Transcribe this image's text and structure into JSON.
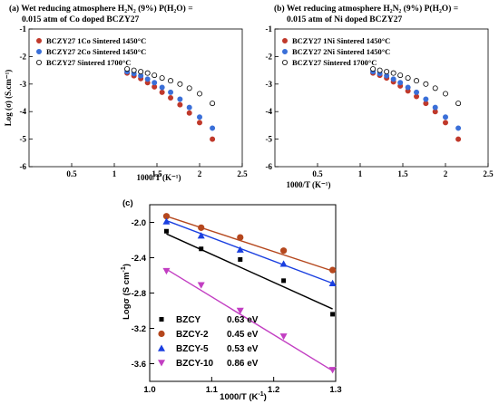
{
  "chart_data": [
    {
      "panel": "(a)",
      "type": "scatter",
      "title_line1": "(a) Wet reducing atmosphere H₂N₂ (9%) P(H₂O) =",
      "title_line2": "0.015 atm of Co doped BCZY27",
      "xlabel": "1000/T (K⁻¹)",
      "ylabel": "Log (σ) (S.cm⁻¹)",
      "xlim": [
        0,
        2.5
      ],
      "ylim": [
        -6,
        -1
      ],
      "xticks": [
        "0.5",
        "1",
        "1.5",
        "2",
        "2.5"
      ],
      "yticks": [
        "-1",
        "-2",
        "-3",
        "-4",
        "-5",
        "-6"
      ],
      "legend_position": "top-left",
      "series": [
        {
          "name": "BCZY27 1Co Sintered 1450°C",
          "color": "#c0392b",
          "marker": "filled-circle",
          "x": [
            1.15,
            1.23,
            1.31,
            1.39,
            1.47,
            1.56,
            1.66,
            1.77,
            1.88,
            2.0,
            2.15
          ],
          "y": [
            -2.6,
            -2.7,
            -2.8,
            -2.95,
            -3.1,
            -3.3,
            -3.5,
            -3.75,
            -4.05,
            -4.4,
            -5.0
          ]
        },
        {
          "name": "BCZY27 2Co Sintered 1450°C",
          "color": "#3a6fd8",
          "marker": "filled-circle",
          "x": [
            1.15,
            1.23,
            1.31,
            1.39,
            1.47,
            1.56,
            1.66,
            1.77,
            1.88,
            2.0,
            2.15
          ],
          "y": [
            -2.55,
            -2.62,
            -2.7,
            -2.82,
            -2.95,
            -3.12,
            -3.3,
            -3.55,
            -3.85,
            -4.2,
            -4.6
          ]
        },
        {
          "name": "BCZY27 Sintered 1700°C",
          "color": "#000000",
          "marker": "open-circle",
          "x": [
            1.15,
            1.23,
            1.31,
            1.39,
            1.47,
            1.56,
            1.66,
            1.77,
            1.88,
            2.0,
            2.15
          ],
          "y": [
            -2.45,
            -2.5,
            -2.55,
            -2.6,
            -2.68,
            -2.78,
            -2.88,
            -3.0,
            -3.15,
            -3.35,
            -3.7
          ]
        }
      ]
    },
    {
      "panel": "(b)",
      "type": "scatter",
      "title_line1": "(b) Wet reducing atmosphere H₂N₂ (9%) P(H₂O) =",
      "title_line2": "0.015 atm of Ni doped BCZY27",
      "xlabel": "1000/T (K⁻¹)",
      "ylabel": "",
      "xlim": [
        0,
        2.5
      ],
      "ylim": [
        -6,
        -1
      ],
      "xticks": [
        "0.5",
        "1",
        "1.5",
        "2",
        "2.5"
      ],
      "yticks": [
        "-1",
        "-2",
        "-3",
        "-4",
        "-5",
        "-6"
      ],
      "legend_position": "top-left",
      "series": [
        {
          "name": "BCZY27 1Ni Sintered 1450°C",
          "color": "#c0392b",
          "marker": "filled-circle",
          "x": [
            1.15,
            1.23,
            1.31,
            1.39,
            1.47,
            1.56,
            1.66,
            1.77,
            1.88,
            2.0,
            2.15
          ],
          "y": [
            -2.6,
            -2.68,
            -2.78,
            -2.92,
            -3.07,
            -3.25,
            -3.45,
            -3.7,
            -4.0,
            -4.4,
            -5.0
          ]
        },
        {
          "name": "BCZY27 2Ni Sintered 1450°C",
          "color": "#3a6fd8",
          "marker": "filled-circle",
          "x": [
            1.15,
            1.23,
            1.31,
            1.39,
            1.47,
            1.56,
            1.66,
            1.77,
            1.88,
            2.0,
            2.15
          ],
          "y": [
            -2.55,
            -2.62,
            -2.7,
            -2.82,
            -2.95,
            -3.12,
            -3.3,
            -3.55,
            -3.85,
            -4.2,
            -4.6
          ]
        },
        {
          "name": "BCZY27 Sintered 1700°C",
          "color": "#000000",
          "marker": "open-circle",
          "x": [
            1.15,
            1.23,
            1.31,
            1.39,
            1.47,
            1.56,
            1.66,
            1.77,
            1.88,
            2.0,
            2.15
          ],
          "y": [
            -2.45,
            -2.5,
            -2.55,
            -2.6,
            -2.68,
            -2.78,
            -2.88,
            -3.0,
            -3.15,
            -3.35,
            -3.7
          ]
        }
      ]
    },
    {
      "panel": "(c)",
      "type": "scatter",
      "xlabel_main": "1000/T (K",
      "xlabel_sup": "-1",
      "xlabel_end": ")",
      "ylabel_main": "Logσ (S cm",
      "ylabel_sup": "-1",
      "ylabel_end": ")",
      "xlim": [
        1.0,
        1.3
      ],
      "ylim": [
        -3.8,
        -1.8
      ],
      "xticks": [
        1.0,
        1.1,
        1.2,
        1.3
      ],
      "yticks": [
        -2.0,
        -2.4,
        -2.8,
        -3.2,
        -3.6
      ],
      "legend_position": "bottom-left",
      "series": [
        {
          "name": "BZCY",
          "energy": "0.63 eV",
          "color": "#000000",
          "marker": "square",
          "x": [
            1.027,
            1.083,
            1.146,
            1.216,
            1.295
          ],
          "y": [
            -2.1,
            -2.3,
            -2.42,
            -2.66,
            -3.04
          ],
          "fit": [
            [
              1.027,
              -2.13
            ],
            [
              1.295,
              -2.98
            ]
          ]
        },
        {
          "name": "BZCY-2",
          "energy": "0.45 eV",
          "color": "#b5471d",
          "marker": "circle",
          "x": [
            1.027,
            1.083,
            1.146,
            1.216,
            1.295
          ],
          "y": [
            -1.93,
            -2.06,
            -2.17,
            -2.32,
            -2.54
          ],
          "fit": [
            [
              1.027,
              -1.93
            ],
            [
              1.295,
              -2.55
            ]
          ]
        },
        {
          "name": "BZCY-5",
          "energy": "0.53 eV",
          "color": "#1a3fe0",
          "marker": "triangle-up",
          "x": [
            1.027,
            1.083,
            1.146,
            1.216,
            1.295
          ],
          "y": [
            -1.99,
            -2.15,
            -2.31,
            -2.47,
            -2.69
          ],
          "fit": [
            [
              1.027,
              -1.98
            ],
            [
              1.295,
              -2.69
            ]
          ]
        },
        {
          "name": "BZCY-10",
          "energy": "0.86 eV",
          "color": "#c23ec2",
          "marker": "triangle-down",
          "x": [
            1.027,
            1.083,
            1.146,
            1.216,
            1.295
          ],
          "y": [
            -2.55,
            -2.71,
            -3.0,
            -3.29,
            -3.67
          ],
          "fit": [
            [
              1.027,
              -2.53
            ],
            [
              1.295,
              -3.68
            ]
          ]
        }
      ]
    }
  ]
}
